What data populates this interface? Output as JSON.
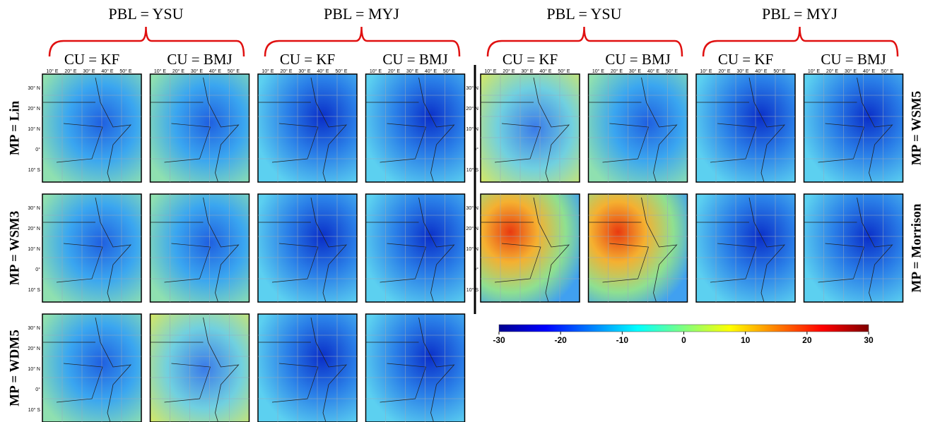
{
  "left_block": {
    "pbl": [
      {
        "label": "PBL = YSU",
        "cu": [
          "CU = KF",
          "CU = BMJ"
        ]
      },
      {
        "label": "PBL = MYJ",
        "cu": [
          "CU = KF",
          "CU = BMJ"
        ]
      }
    ],
    "mp": [
      "MP = Lin",
      "MP = WSM3",
      "MP = WDM5"
    ]
  },
  "right_block": {
    "pbl": [
      {
        "label": "PBL = YSU",
        "cu": [
          "CU = KF",
          "CU = BMJ"
        ]
      },
      {
        "label": "PBL = MYJ",
        "cu": [
          "CU = KF",
          "CU = BMJ"
        ]
      }
    ],
    "mp": [
      "MP = WSM5",
      "MP = Morrison"
    ]
  },
  "lon_ticks": [
    "10° E",
    "20° E",
    "30° E",
    "40° E",
    "50° E"
  ],
  "lat_ticks": [
    "30° N",
    "20° N",
    "10° N",
    "0°",
    "10° S"
  ],
  "colorbar": {
    "lim": [
      -30,
      30
    ],
    "ticks": [
      -30,
      -20,
      -10,
      0,
      10,
      20,
      30
    ]
  }
}
